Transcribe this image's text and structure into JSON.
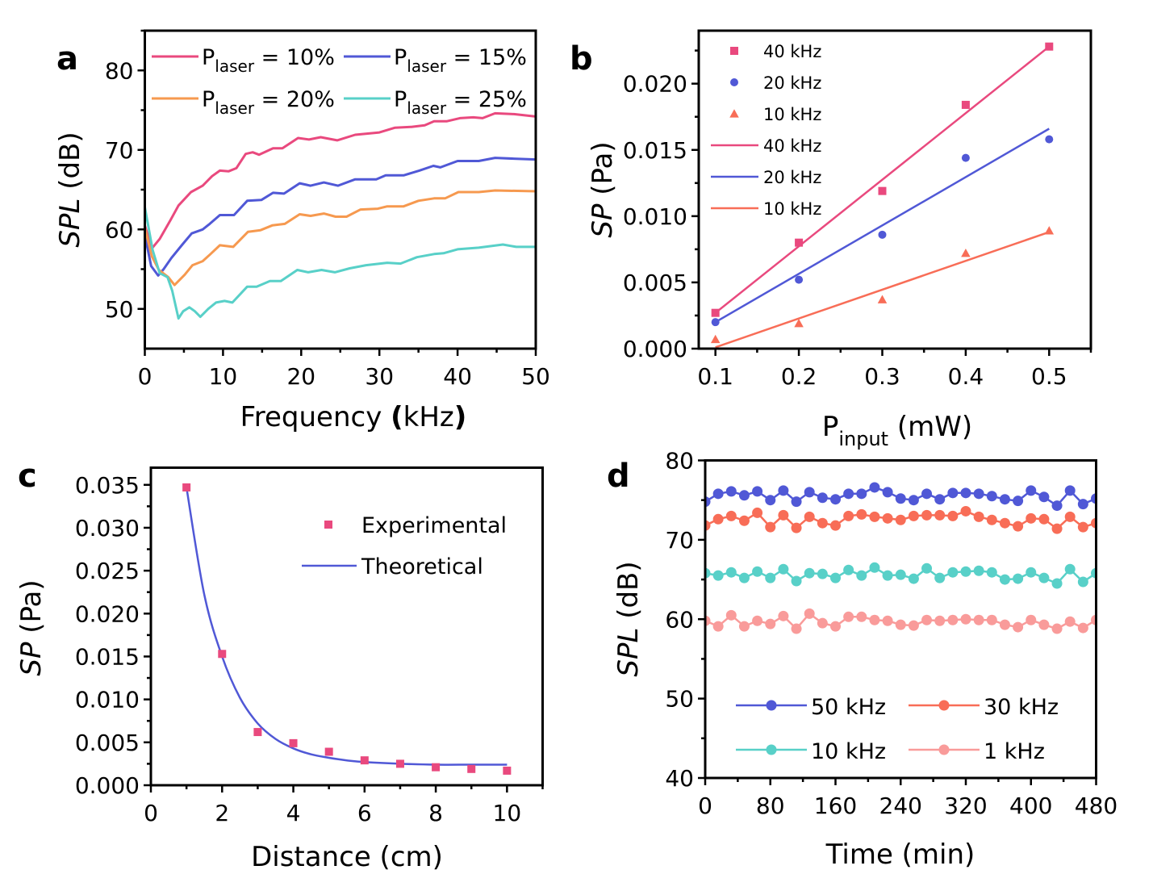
{
  "figure": {
    "colors": {
      "pink": "#E9497E",
      "blue": "#5058D6",
      "orange": "#F6994F",
      "teal": "#58D0C8",
      "coral": "#F86D57",
      "salmon": "#F99B9A"
    }
  },
  "chart_data": [
    {
      "panel": "a",
      "type": "line",
      "xlabel": "Frequency (kHz)",
      "ylabel": "SPL (dB)",
      "xlim": [
        0,
        50
      ],
      "ylim": [
        45,
        85
      ],
      "xticks": [
        0,
        10,
        20,
        30,
        40,
        50
      ],
      "xtick_labels": [
        "0",
        "10",
        "20",
        "30",
        "40",
        "50"
      ],
      "yticks": [
        50,
        60,
        70,
        80
      ],
      "ytick_labels": [
        "50",
        "60",
        "70",
        "80"
      ],
      "legend_position": "top",
      "series": [
        {
          "name": "P_laser = 10%",
          "label_main": "P",
          "label_sub": "laser",
          "label_rest": " = 10%",
          "color": "#E9497E",
          "x": [
            0,
            0.9,
            1.9,
            3.3,
            4.3,
            5.9,
            7.4,
            8.6,
            9.6,
            10.7,
            11.7,
            12.9,
            13.8,
            14.6,
            16.4,
            17.6,
            19.6,
            21.0,
            22.5,
            24.6,
            26.9,
            30.0,
            32.0,
            34.1,
            35.8,
            37.0,
            38.6,
            40.3,
            42.0,
            43.2,
            44.8,
            47.2,
            50.0
          ],
          "y": [
            60.5,
            57.6,
            58.8,
            61.2,
            63.0,
            64.7,
            65.5,
            66.7,
            67.4,
            67.3,
            67.7,
            69.5,
            69.7,
            69.4,
            70.2,
            70.2,
            71.5,
            71.3,
            71.6,
            71.2,
            71.9,
            72.2,
            72.8,
            72.9,
            73.1,
            73.6,
            73.6,
            74.0,
            74.1,
            74.0,
            74.6,
            74.5,
            74.2
          ]
        },
        {
          "name": "P_laser = 15%",
          "label_main": "P",
          "label_sub": "laser",
          "label_rest": " = 15%",
          "color": "#5058D6",
          "x": [
            0,
            0.8,
            1.7,
            2.4,
            3.4,
            4.8,
            6.0,
            7.4,
            8.3,
            9.6,
            11.4,
            13.1,
            14.9,
            16.4,
            17.8,
            19.8,
            21.2,
            22.9,
            24.7,
            26.9,
            29.6,
            30.8,
            33.1,
            35.1,
            36.9,
            37.8,
            40.0,
            42.7,
            44.8,
            47.2,
            50.0
          ],
          "y": [
            59.3,
            55.4,
            54.2,
            55.0,
            56.4,
            58.1,
            59.5,
            60.0,
            60.7,
            61.8,
            61.8,
            63.6,
            63.7,
            64.6,
            64.5,
            65.8,
            65.5,
            65.9,
            65.5,
            66.3,
            66.3,
            66.8,
            66.8,
            67.4,
            68.0,
            67.8,
            68.6,
            68.6,
            69.0,
            68.9,
            68.8
          ]
        },
        {
          "name": "P_laser = 20%",
          "label_main": "P",
          "label_sub": "laser",
          "label_rest": " = 20%",
          "color": "#F6994F",
          "x": [
            0,
            0.9,
            1.8,
            3.0,
            3.8,
            5.1,
            6.1,
            7.4,
            8.4,
            9.6,
            11.3,
            13.2,
            14.8,
            16.3,
            17.9,
            19.8,
            21.2,
            22.9,
            24.4,
            25.8,
            27.6,
            29.8,
            31.0,
            33.1,
            35.0,
            37.0,
            38.4,
            40.1,
            42.7,
            44.8,
            50.0
          ],
          "y": [
            60.2,
            56.6,
            54.9,
            54.0,
            53.0,
            54.3,
            55.5,
            56.0,
            56.9,
            58.0,
            57.8,
            59.7,
            59.9,
            60.5,
            60.7,
            61.9,
            61.7,
            62.0,
            61.6,
            61.6,
            62.5,
            62.6,
            62.9,
            62.9,
            63.6,
            63.9,
            63.9,
            64.7,
            64.7,
            64.9,
            64.8
          ]
        },
        {
          "name": "P_laser = 25%",
          "label_main": "P",
          "label_sub": "laser",
          "label_rest": " = 25%",
          "color": "#58D0C8",
          "x": [
            0,
            1.0,
            1.9,
            2.9,
            3.5,
            4.3,
            4.9,
            5.7,
            6.4,
            7.1,
            8.1,
            9.1,
            10.2,
            11.2,
            13.1,
            14.3,
            16.0,
            17.4,
            19.5,
            20.9,
            22.6,
            24.3,
            26.2,
            28.3,
            31.0,
            32.7,
            34.8,
            37.0,
            38.2,
            40.0,
            42.7,
            45.8,
            47.5,
            50.0
          ],
          "y": [
            62.8,
            57.4,
            54.5,
            54.0,
            52.3,
            48.8,
            49.7,
            50.2,
            49.7,
            49.0,
            50.0,
            50.8,
            51.0,
            50.8,
            52.8,
            52.8,
            53.5,
            53.5,
            54.9,
            54.6,
            54.9,
            54.6,
            55.1,
            55.5,
            55.8,
            55.7,
            56.5,
            56.9,
            57.0,
            57.5,
            57.7,
            58.1,
            57.8,
            57.8
          ]
        }
      ]
    },
    {
      "panel": "b",
      "type": "scatter",
      "xlabel_main": "P",
      "xlabel_sub": "input",
      "xlabel_rest": " (mW)",
      "ylabel": "SP (Pa)",
      "xlim": [
        0.08,
        0.55
      ],
      "ylim": [
        0,
        0.024
      ],
      "xticks": [
        0.1,
        0.2,
        0.3,
        0.4,
        0.5
      ],
      "xtick_labels": [
        "0.1",
        "0.2",
        "0.3",
        "0.4",
        "0.5"
      ],
      "yticks": [
        0,
        0.005,
        0.01,
        0.015,
        0.02
      ],
      "ytick_labels": [
        "0.000",
        "0.005",
        "0.010",
        "0.015",
        "0.020"
      ],
      "legend_position": "top-left",
      "x": [
        0.1,
        0.2,
        0.3,
        0.4,
        0.5
      ],
      "series": [
        {
          "name": "40 kHz",
          "kind": "points",
          "marker": "square",
          "color": "#E9497E",
          "values": [
            0.0027,
            0.008,
            0.0119,
            0.0184,
            0.0228
          ]
        },
        {
          "name": "20 kHz",
          "kind": "points",
          "marker": "circle",
          "color": "#5058D6",
          "values": [
            0.002,
            0.0052,
            0.0086,
            0.0144,
            0.0158
          ]
        },
        {
          "name": "10 kHz",
          "kind": "points",
          "marker": "triangle",
          "color": "#F86D57",
          "values": [
            0.0007,
            0.0019,
            0.0037,
            0.0072,
            0.0089
          ]
        },
        {
          "name": "40 kHz",
          "kind": "fit",
          "color": "#E9497E",
          "x": [
            0.1,
            0.5
          ],
          "values": [
            0.0027,
            0.0228
          ]
        },
        {
          "name": "20 kHz",
          "kind": "fit",
          "color": "#5058D6",
          "x": [
            0.1,
            0.5
          ],
          "values": [
            0.002,
            0.0166
          ]
        },
        {
          "name": "10 kHz",
          "kind": "fit",
          "color": "#F86D57",
          "x": [
            0.1,
            0.5
          ],
          "values": [
            0.0001,
            0.0088
          ]
        }
      ]
    },
    {
      "panel": "c",
      "type": "scatter",
      "xlabel": "Distance (cm)",
      "ylabel": "SP (Pa)",
      "xlim": [
        0,
        11
      ],
      "ylim": [
        0,
        0.037
      ],
      "xticks": [
        0,
        2,
        4,
        6,
        8,
        10
      ],
      "xtick_labels": [
        "0",
        "2",
        "4",
        "6",
        "8",
        "10"
      ],
      "yticks": [
        0,
        0.005,
        0.01,
        0.015,
        0.02,
        0.025,
        0.03,
        0.035
      ],
      "ytick_labels": [
        "0.000",
        "0.005",
        "0.010",
        "0.015",
        "0.020",
        "0.025",
        "0.030",
        "0.035"
      ],
      "legend_position": "top-right",
      "series": [
        {
          "name": "Experimental",
          "kind": "points",
          "marker": "square",
          "color": "#E9497E",
          "x": [
            1,
            2,
            3,
            4,
            5,
            6,
            7,
            8,
            9,
            10
          ],
          "values": [
            0.0347,
            0.0153,
            0.0062,
            0.0049,
            0.0039,
            0.0029,
            0.0025,
            0.0021,
            0.0019,
            0.0017
          ]
        },
        {
          "name": "Theoretical",
          "kind": "curve",
          "color": "#5058D6",
          "x": [
            1,
            1.5,
            2,
            2.5,
            3,
            3.5,
            4,
            4.5,
            5,
            5.5,
            6,
            7,
            8,
            9,
            10
          ],
          "values": [
            0.0347,
            0.0222,
            0.015,
            0.0102,
            0.0072,
            0.0054,
            0.0043,
            0.0036,
            0.0032,
            0.0029,
            0.0027,
            0.0025,
            0.0024,
            0.0024,
            0.0024
          ]
        }
      ]
    },
    {
      "panel": "d",
      "type": "line",
      "xlabel": "Time (min)",
      "ylabel": "SPL (dB)",
      "xlim": [
        0,
        480
      ],
      "ylim": [
        40,
        80
      ],
      "xticks": [
        0,
        80,
        160,
        240,
        320,
        400,
        480
      ],
      "xtick_labels": [
        "0",
        "80",
        "160",
        "240",
        "320",
        "400",
        "480"
      ],
      "yticks": [
        40,
        50,
        60,
        70,
        80
      ],
      "ytick_labels": [
        "40",
        "50",
        "60",
        "70",
        "80"
      ],
      "legend_position": "bottom",
      "x": [
        0,
        16,
        32,
        48,
        64,
        80,
        96,
        112,
        128,
        144,
        160,
        176,
        192,
        208,
        224,
        240,
        256,
        272,
        288,
        304,
        320,
        336,
        352,
        368,
        384,
        400,
        416,
        432,
        448,
        464,
        480
      ],
      "series": [
        {
          "name": "50 kHz",
          "color": "#5058D6",
          "values": [
            74.8,
            75.8,
            76.1,
            75.6,
            76.1,
            75.0,
            76.2,
            74.8,
            76.0,
            75.3,
            75.1,
            75.8,
            75.8,
            76.6,
            76.0,
            75.2,
            75.0,
            75.8,
            75.1,
            75.9,
            75.9,
            75.8,
            75.5,
            75.1,
            74.9,
            76.2,
            75.4,
            74.3,
            76.2,
            74.5,
            75.2
          ]
        },
        {
          "name": "30 kHz",
          "color": "#F86D57",
          "values": [
            71.8,
            72.6,
            73.0,
            72.4,
            73.4,
            71.6,
            73.1,
            71.5,
            72.9,
            72.1,
            71.8,
            73.0,
            73.2,
            72.9,
            72.7,
            72.5,
            73.0,
            73.1,
            73.1,
            73.0,
            73.6,
            72.9,
            72.5,
            72.1,
            71.7,
            72.7,
            72.6,
            71.4,
            72.9,
            71.6,
            72.1
          ]
        },
        {
          "name": "10 kHz",
          "color": "#58D0C8",
          "values": [
            65.8,
            65.5,
            65.9,
            65.2,
            66.0,
            65.2,
            66.3,
            64.8,
            65.8,
            65.7,
            65.2,
            66.2,
            65.5,
            66.5,
            65.5,
            65.6,
            65.1,
            66.4,
            65.2,
            65.9,
            66.0,
            66.1,
            65.9,
            65.0,
            65.1,
            65.9,
            65.2,
            64.5,
            66.3,
            64.7,
            65.8
          ]
        },
        {
          "name": "1 kHz",
          "color": "#F99B9A",
          "values": [
            59.8,
            59.1,
            60.5,
            59.1,
            59.8,
            59.4,
            60.4,
            58.8,
            60.7,
            59.5,
            59.1,
            60.3,
            60.3,
            59.9,
            59.8,
            59.3,
            59.2,
            59.9,
            59.8,
            59.9,
            60.0,
            59.9,
            59.9,
            59.3,
            59.0,
            59.9,
            59.3,
            58.8,
            59.7,
            58.9,
            59.9
          ]
        }
      ]
    }
  ],
  "panels": {
    "a": {
      "letter": "a",
      "xlabel_main": "Frequency ",
      "xlabel_paren_open": "(",
      "xlabel_unit": "kHz",
      "xlabel_paren_close": ")",
      "ylabel_italic": "SPL",
      "ylabel_rest": " (dB)"
    },
    "b": {
      "letter": "b",
      "ylabel_italic": "SP",
      "ylabel_rest": " (Pa)",
      "xlabel_main": "P",
      "xlabel_sub": "input",
      "xlabel_rest": " (mW)"
    },
    "c": {
      "letter": "c",
      "xlabel": "Distance (cm)",
      "ylabel_italic": "SP",
      "ylabel_rest": " (Pa)"
    },
    "d": {
      "letter": "d",
      "xlabel": "Time (min)",
      "ylabel_italic": "SPL",
      "ylabel_rest": " (dB)"
    }
  }
}
